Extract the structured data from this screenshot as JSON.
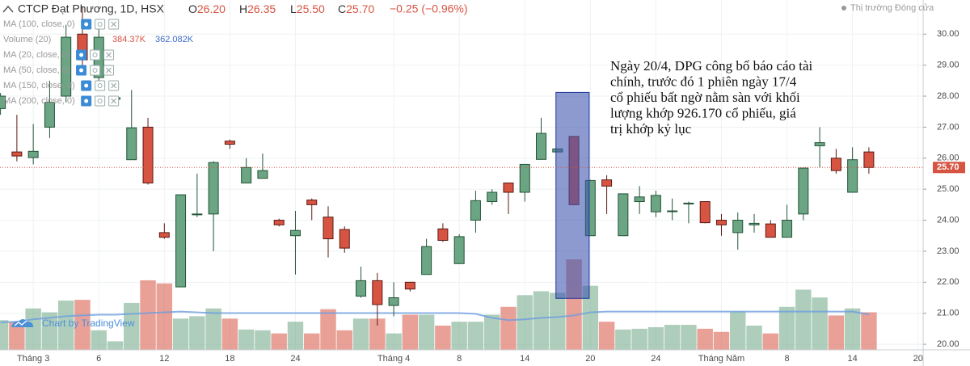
{
  "chart_data": {
    "type": "candlestick",
    "title": "CTCP Đạt Phương, 1D, HSX",
    "ohlc_legend": [
      {
        "label": "O",
        "value": "26.20"
      },
      {
        "label": "H",
        "value": "26.35"
      },
      {
        "label": "L",
        "value": "25.50"
      },
      {
        "label": "C",
        "value": "25.70"
      }
    ],
    "change": "−0.25 (−0.96%)",
    "market_status": "Thị trường Đóng cửa",
    "watermark": "Chart by TradingView",
    "indicators": [
      "MA (100, close, 0)",
      "Volume (20)",
      "MA (20, close, 0)",
      "MA (50, close, 0)",
      "MA (150, close, 0)",
      "MA (200, close, 0)"
    ],
    "volume_legend": {
      "value": "384.37K",
      "ma": "362.082K"
    },
    "x": [
      0,
      1,
      2,
      3,
      4,
      5,
      6,
      7,
      8,
      9,
      10,
      11,
      12,
      13,
      14,
      15,
      16,
      17,
      18,
      19,
      20,
      21,
      22,
      23,
      24,
      25,
      26,
      27,
      28,
      29,
      30,
      31,
      32,
      33,
      34,
      35,
      36,
      37,
      38,
      39,
      40,
      41,
      42,
      43,
      44,
      45,
      46,
      47,
      48,
      49,
      50,
      51,
      52,
      53
    ],
    "open": [
      27.6,
      26.2,
      26.02,
      27.0,
      28.0,
      30.0,
      28.6,
      27.9,
      25.95,
      27.0,
      23.6,
      21.85,
      24.18,
      24.2,
      26.55,
      25.2,
      25.35,
      24.0,
      23.5,
      24.65,
      24.1,
      23.7,
      21.55,
      22.05,
      21.25,
      22.0,
      22.25,
      23.72,
      22.6,
      24.0,
      24.6,
      25.2,
      24.9,
      25.96,
      26.2,
      26.7,
      23.5,
      25.3,
      23.5,
      24.6,
      24.27,
      24.3,
      24.55,
      24.6,
      24.0,
      23.6,
      23.85,
      23.88,
      23.45,
      24.2,
      26.4,
      26.0,
      24.9,
      26.2
    ],
    "high": [
      28.1,
      27.4,
      27.1,
      28.5,
      30.3,
      30.9,
      30.2,
      28.0,
      28.2,
      27.3,
      23.9,
      24.82,
      25.5,
      25.9,
      26.6,
      26.0,
      26.15,
      24.05,
      24.3,
      24.7,
      24.45,
      23.8,
      22.5,
      22.3,
      22.0,
      22.0,
      23.4,
      23.9,
      23.55,
      24.95,
      25.0,
      25.2,
      25.8,
      27.3,
      26.3,
      26.7,
      25.3,
      25.45,
      24.85,
      25.1,
      24.95,
      24.7,
      24.6,
      24.6,
      24.2,
      24.25,
      24.2,
      24.0,
      24.5,
      25.7,
      27.0,
      26.3,
      26.35,
      26.35
    ],
    "low": [
      27.4,
      25.9,
      25.8,
      26.65,
      27.8,
      28.75,
      28.4,
      27.8,
      25.95,
      25.15,
      23.4,
      21.85,
      24.1,
      23.0,
      26.3,
      25.2,
      25.35,
      23.8,
      22.25,
      24.0,
      22.8,
      22.95,
      21.5,
      20.6,
      20.9,
      21.7,
      22.25,
      23.3,
      22.6,
      23.6,
      24.5,
      24.2,
      24.6,
      25.95,
      26.2,
      24.5,
      23.5,
      24.2,
      23.5,
      24.2,
      24.1,
      24.0,
      23.9,
      23.9,
      23.5,
      23.05,
      23.6,
      23.45,
      23.45,
      24.0,
      25.7,
      25.5,
      24.9,
      25.5
    ],
    "close": [
      28.0,
      26.07,
      26.22,
      27.8,
      29.9,
      29.17,
      29.9,
      27.95,
      26.98,
      25.2,
      23.45,
      24.82,
      24.2,
      25.86,
      26.45,
      25.7,
      25.6,
      23.85,
      23.67,
      24.5,
      23.4,
      23.1,
      22.05,
      21.28,
      21.5,
      21.78,
      23.15,
      23.35,
      23.47,
      24.63,
      24.9,
      24.9,
      25.8,
      26.8,
      26.3,
      24.5,
      25.28,
      25.1,
      24.85,
      24.75,
      24.8,
      24.3,
      24.55,
      23.92,
      23.85,
      24.0,
      23.9,
      23.45,
      24.0,
      25.68,
      26.5,
      25.6,
      25.95,
      25.7
    ],
    "volume": [
      304,
      288,
      424,
      384,
      504,
      512,
      200,
      88,
      480,
      712,
      680,
      320,
      344,
      424,
      320,
      208,
      200,
      168,
      288,
      168,
      416,
      200,
      320,
      320,
      168,
      360,
      360,
      248,
      288,
      288,
      360,
      440,
      560,
      600,
      584,
      926.17,
      656,
      288,
      208,
      216,
      232,
      256,
      256,
      216,
      184,
      392,
      248,
      168,
      440,
      616,
      536,
      352,
      424,
      384.37
    ],
    "volume_ma": [
      280,
      288,
      312,
      328,
      344,
      352,
      360,
      360,
      368,
      376,
      384,
      392,
      384,
      376,
      376,
      376,
      376,
      376,
      376,
      376,
      376,
      376,
      376,
      376,
      376,
      376,
      376,
      376,
      376,
      368,
      328,
      304,
      312,
      328,
      336,
      352,
      384,
      392,
      392,
      392,
      392,
      392,
      392,
      392,
      392,
      392,
      392,
      392,
      392,
      392,
      392,
      392,
      392,
      362.082
    ],
    "xlim": [
      -0.03,
      56.31
    ],
    "xticks": [
      {
        "value": 2,
        "label": "Tháng 3"
      },
      {
        "value": 6,
        "label": "6"
      },
      {
        "value": 10,
        "label": "12"
      },
      {
        "value": 14,
        "label": "18"
      },
      {
        "value": 18,
        "label": "24"
      },
      {
        "value": 24,
        "label": "Tháng 4"
      },
      {
        "value": 28,
        "label": "8"
      },
      {
        "value": 32,
        "label": "14"
      },
      {
        "value": 36,
        "label": "20"
      },
      {
        "value": 40,
        "label": "24"
      },
      {
        "value": 44,
        "label": "Tháng Năm"
      },
      {
        "value": 48,
        "label": "8"
      },
      {
        "value": 52,
        "label": "14"
      },
      {
        "value": 56,
        "label": "20"
      }
    ],
    "ylim": [
      19.82,
      31.1
    ],
    "yticks": [
      {
        "value": 20,
        "label": "20.00"
      },
      {
        "value": 21,
        "label": "21.00"
      },
      {
        "value": 22,
        "label": "22.00"
      },
      {
        "value": 23,
        "label": "23.00"
      },
      {
        "value": 24,
        "label": "24.00"
      },
      {
        "value": 25,
        "label": "25.00"
      },
      {
        "value": 26,
        "label": "26.00"
      },
      {
        "value": 27,
        "label": "27.00"
      },
      {
        "value": 28,
        "label": "28.00"
      },
      {
        "value": 29,
        "label": "29.00"
      },
      {
        "value": 30,
        "label": "30.00"
      }
    ],
    "grid": true,
    "up_color": "#6ba583",
    "down_color": "#d75442",
    "volume_ma_color": "#6d9ee0",
    "last_price": {
      "value": 25.7,
      "label": "25.70"
    },
    "annotation": {
      "lines": [
        "Ngày 20/4, DPG công bố báo cáo tài",
        "chính, trước đó 1 phiên ngày 17/4",
        "cổ phiếu bất ngờ nằm sàn với khối",
        "lượng khớp 926.170 cổ phiếu, giá",
        "trị khớp kỷ lục"
      ],
      "box": {
        "x": [
          33.9,
          35.93
        ],
        "y": [
          21.48,
          28.12
        ]
      }
    }
  }
}
